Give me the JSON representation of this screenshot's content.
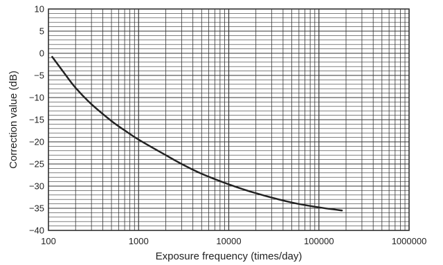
{
  "chart_data": {
    "type": "line",
    "xlabel": "Exposure frequency (times/day)",
    "ylabel": "Correction value (dB)",
    "x_scale": "log",
    "xlim": [
      100,
      1000000
    ],
    "ylim": [
      -40,
      10
    ],
    "x_ticks": [
      100,
      1000,
      10000,
      100000,
      1000000
    ],
    "x_tick_labels": [
      "100",
      "1000",
      "10000",
      "100000",
      "1000000"
    ],
    "y_ticks": [
      10,
      5,
      0,
      -5,
      -10,
      -15,
      -20,
      -25,
      -30,
      -35,
      -40
    ],
    "y_tick_labels": [
      "10",
      "5",
      "0",
      "−5",
      "−10",
      "−15",
      "−20",
      "−25",
      "−30",
      "−35",
      "−40"
    ],
    "grid": true,
    "series": [
      {
        "points": [
          [
            110,
            -0.8
          ],
          [
            150,
            -4.5
          ],
          [
            200,
            -7.8
          ],
          [
            300,
            -11.5
          ],
          [
            500,
            -15.3
          ],
          [
            700,
            -17.4
          ],
          [
            1000,
            -19.5
          ],
          [
            2000,
            -23.0
          ],
          [
            3000,
            -25.0
          ],
          [
            5000,
            -27.2
          ],
          [
            10000,
            -29.6
          ],
          [
            20000,
            -31.6
          ],
          [
            50000,
            -33.7
          ],
          [
            100000,
            -34.8
          ],
          [
            180000,
            -35.5
          ]
        ],
        "color": "#222222"
      }
    ]
  }
}
